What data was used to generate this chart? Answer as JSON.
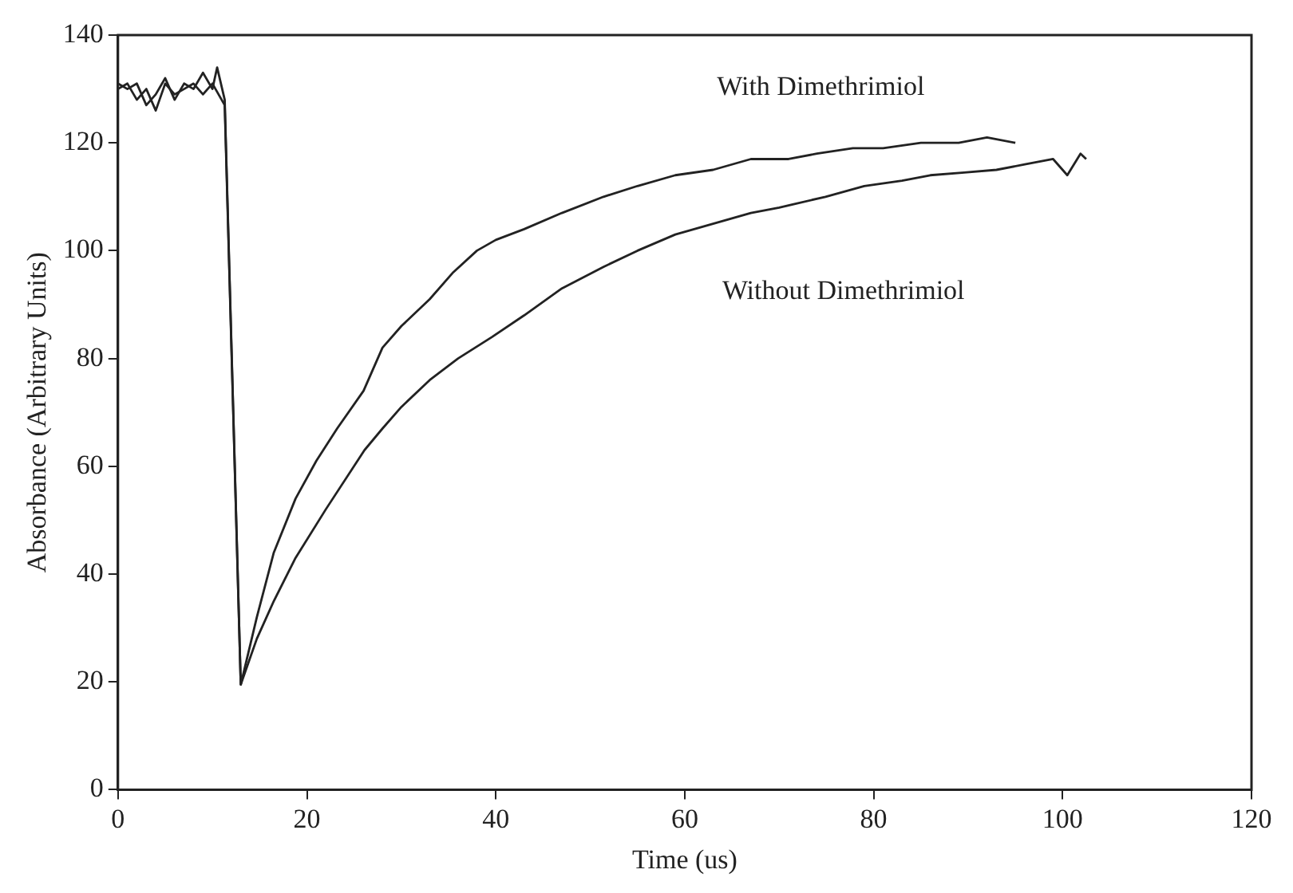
{
  "chart_data": {
    "type": "line",
    "xlabel": "Time (us)",
    "ylabel": "Absorbance (Arbitrary Units)",
    "xlim": [
      0,
      120
    ],
    "ylim": [
      0,
      140
    ],
    "xticks": [
      0,
      20,
      40,
      60,
      80,
      100,
      120
    ],
    "yticks": [
      0,
      20,
      40,
      60,
      80,
      100,
      120,
      140
    ],
    "grid": false,
    "legend": false,
    "marker": "none",
    "line_style": "solid",
    "series": [
      {
        "name": "With Dimethrimiol",
        "color": "#222222",
        "x": [
          0,
          1,
          2,
          3,
          4,
          5,
          6,
          7,
          8,
          9,
          10,
          10.5,
          11.3,
          13,
          14.7,
          16.5,
          18.8,
          21,
          23.2,
          26,
          28,
          30,
          33,
          35.5,
          38,
          40,
          43,
          47,
          51.4,
          55,
          59,
          63,
          67,
          71,
          74,
          77.8,
          81,
          85,
          89,
          92,
          95
        ],
        "values": [
          131,
          130,
          131,
          127,
          129,
          132,
          128,
          131,
          130,
          133,
          130,
          134,
          128,
          19.5,
          32,
          44,
          54,
          61,
          67,
          74,
          82,
          86,
          91,
          96,
          100,
          102,
          104,
          107,
          110,
          112,
          114,
          115,
          117,
          117,
          118,
          119,
          119,
          120,
          120,
          121,
          120
        ]
      },
      {
        "name": "Without Dimethrimiol",
        "color": "#222222",
        "x": [
          0,
          1,
          2,
          3,
          4,
          5,
          6,
          7,
          8,
          9,
          10,
          11.3,
          13,
          14.7,
          16.5,
          18.8,
          22,
          26.1,
          28,
          30,
          33,
          36,
          39.6,
          43,
          47,
          51.4,
          55,
          59,
          63,
          67,
          70,
          74.9,
          79,
          83,
          86,
          89.6,
          93,
          96,
          99,
          100.5,
          101.9,
          102.5
        ],
        "values": [
          130,
          131,
          128,
          130,
          126,
          131,
          129,
          130,
          131,
          129,
          131,
          127,
          19.5,
          28,
          35,
          43,
          52,
          63,
          67,
          71,
          76,
          80,
          84,
          88,
          93,
          97,
          100,
          103,
          105,
          107,
          108,
          110,
          112,
          113,
          114,
          114.5,
          115,
          116,
          117,
          114,
          118,
          117
        ]
      }
    ]
  }
}
